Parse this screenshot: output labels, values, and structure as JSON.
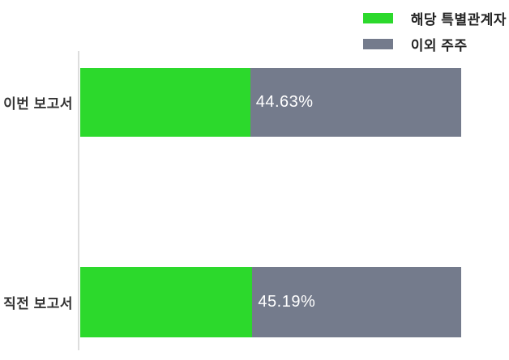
{
  "chart_data": {
    "type": "bar",
    "orientation": "horizontal",
    "stacked": true,
    "title": "",
    "xlabel": "",
    "ylabel": "",
    "xlim": [
      0,
      100
    ],
    "grid": false,
    "legend_position": "top-right",
    "categories": [
      "이번 보고서",
      "직전 보고서"
    ],
    "series": [
      {
        "name": "해당 특별관계자",
        "color": "#2cd92c",
        "values": [
          44.63,
          45.19
        ]
      },
      {
        "name": "이외 주주",
        "color": "#747b8c",
        "values": [
          55.37,
          54.81
        ]
      }
    ],
    "value_labels": [
      "44.63%",
      "45.19%"
    ]
  },
  "colors": {
    "green": "#2cd92c",
    "gray": "#747b8c",
    "axis": "#dddddd",
    "label_text": "#333333",
    "value_text": "#ffffff"
  }
}
